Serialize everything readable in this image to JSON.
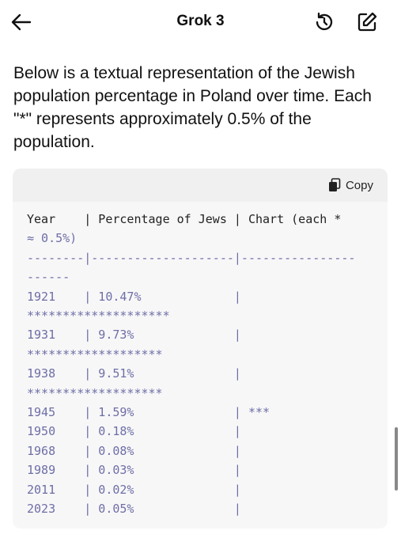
{
  "header": {
    "title": "Grok 3"
  },
  "message": {
    "text": "Below is a textual representation of the Jewish population percentage in Poland over time. Each \"*\" represents approximately 0.5% of the population."
  },
  "code_block": {
    "copy_label": "Copy",
    "rows": [
      "Year    | Percentage of Jews | Chart (each *",
      "≈ 0.5%)",
      "--------|--------------------|----------------",
      "------",
      "1921    | 10.47%             |",
      "********************",
      "1931    | 9.73%              |",
      "*******************",
      "1938    | 9.51%              |",
      "*******************",
      "1945    | 1.59%              | ***",
      "1950    | 0.18%              |",
      "1968    | 0.08%              |",
      "1989    | 0.03%              |",
      "2011    | 0.02%              |",
      "2023    | 0.05%              |"
    ]
  }
}
